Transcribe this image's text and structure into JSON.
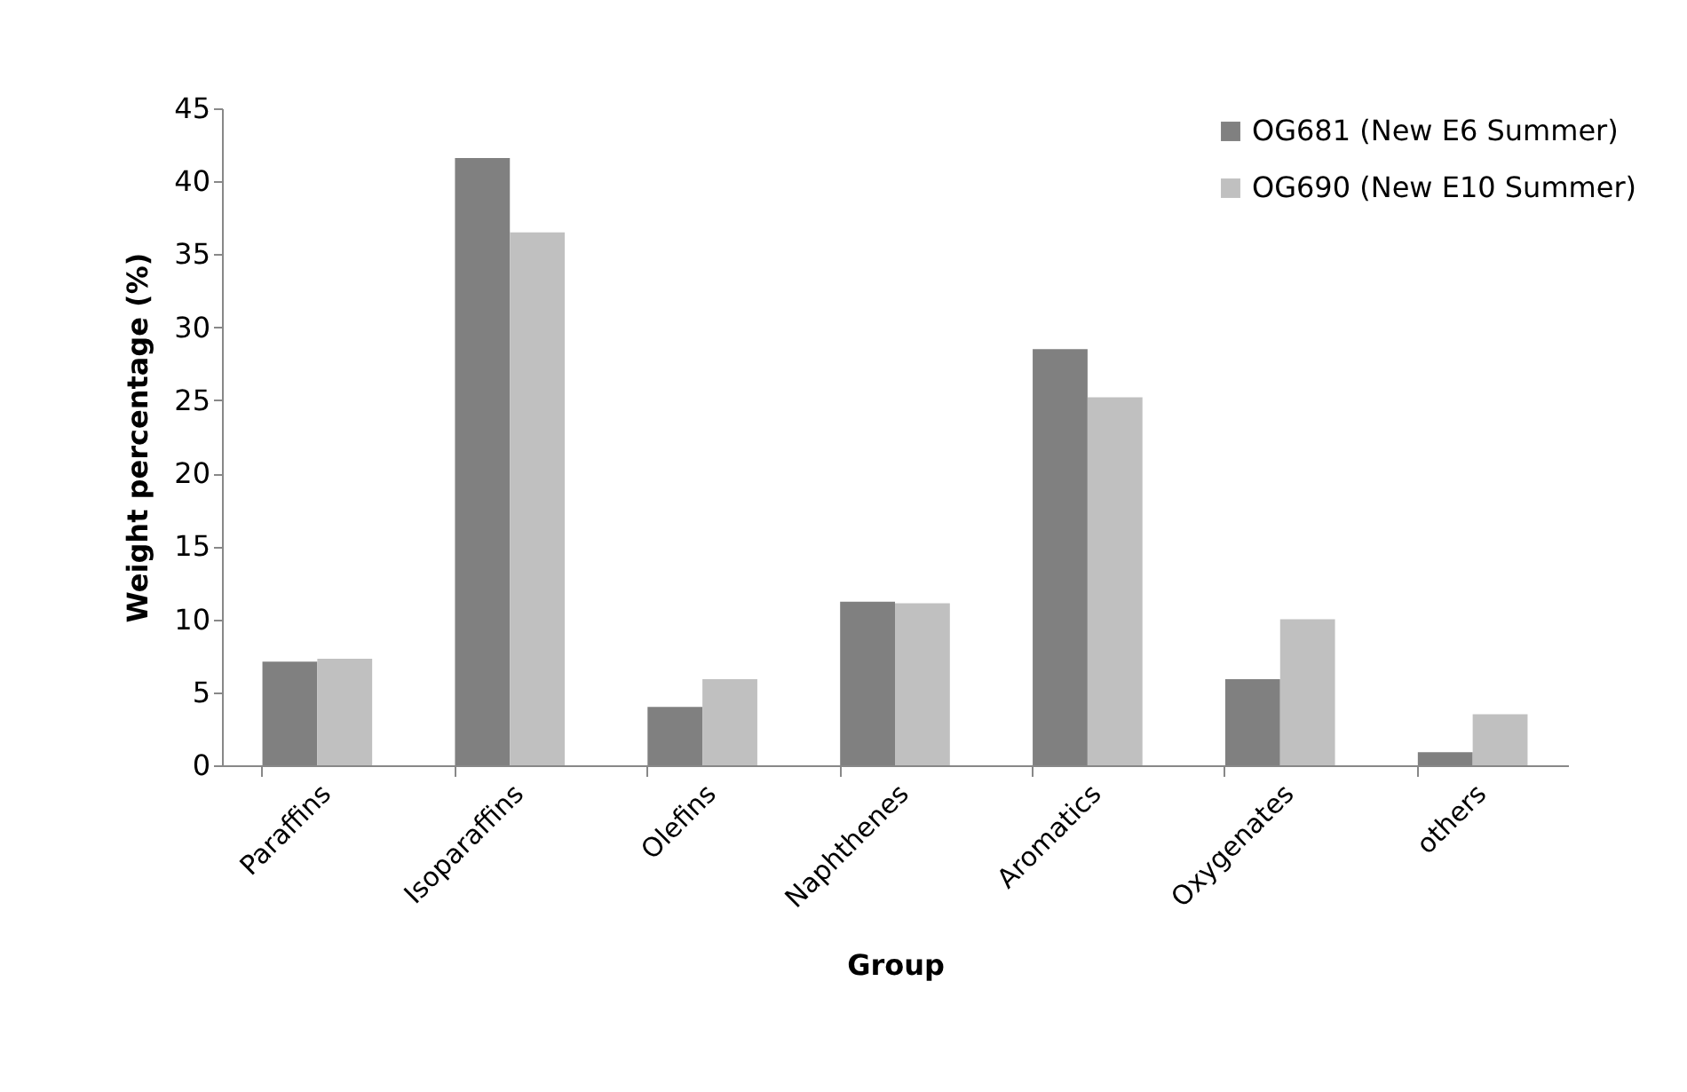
{
  "chart_data": {
    "type": "bar",
    "xlabel": "Group",
    "ylabel": "Weight percentage (%)",
    "categories": [
      "Paraffins",
      "Isoparaffins",
      "Olefins",
      "Naphthenes",
      "Aromatics",
      "Oxygenates",
      "others"
    ],
    "series": [
      {
        "name": "OG681 (New E6 Summer)",
        "color": "#808080",
        "values": [
          7.1,
          41.6,
          4.0,
          11.2,
          28.5,
          5.9,
          0.9
        ]
      },
      {
        "name": "OG690 (New E10 Summer)",
        "color": "#c0c0c0",
        "values": [
          7.3,
          36.5,
          5.9,
          11.1,
          25.2,
          10.0,
          3.5
        ]
      }
    ],
    "ylim": [
      0,
      45
    ],
    "yticks": [
      0,
      5,
      10,
      15,
      20,
      25,
      30,
      35,
      40,
      45
    ],
    "grid": false,
    "legend": "top right"
  }
}
